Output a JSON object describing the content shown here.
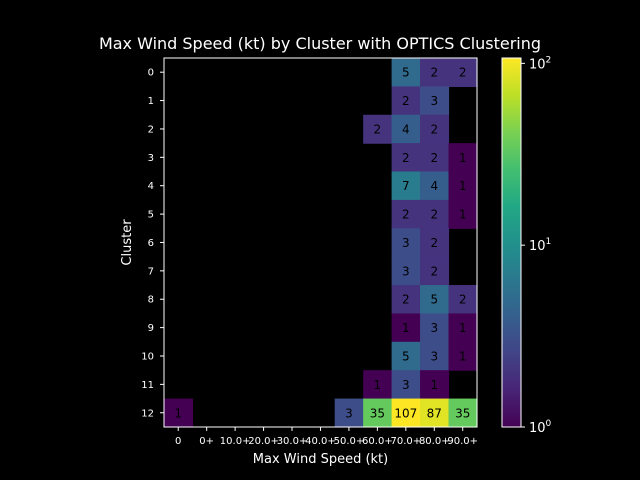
{
  "chart_data": {
    "type": "heatmap",
    "title": "Max Wind Speed (kt) by Cluster with OPTICS Clustering",
    "xlabel": "Max Wind Speed (kt)",
    "ylabel": "Cluster",
    "x_categories": [
      "0",
      "0+",
      "10.0+",
      "20.0+",
      "30.0+",
      "40.0+",
      "50.0+",
      "60.0+",
      "70.0+",
      "80.0+",
      "90.0+"
    ],
    "y_categories": [
      "0",
      "1",
      "2",
      "3",
      "4",
      "5",
      "6",
      "7",
      "8",
      "9",
      "10",
      "11",
      "12"
    ],
    "values": [
      [
        null,
        null,
        null,
        null,
        null,
        null,
        null,
        null,
        5,
        2,
        2
      ],
      [
        null,
        null,
        null,
        null,
        null,
        null,
        null,
        null,
        2,
        3,
        null
      ],
      [
        null,
        null,
        null,
        null,
        null,
        null,
        null,
        2,
        4,
        2,
        null
      ],
      [
        null,
        null,
        null,
        null,
        null,
        null,
        null,
        null,
        2,
        2,
        1
      ],
      [
        null,
        null,
        null,
        null,
        null,
        null,
        null,
        null,
        7,
        4,
        1
      ],
      [
        null,
        null,
        null,
        null,
        null,
        null,
        null,
        null,
        2,
        2,
        1
      ],
      [
        null,
        null,
        null,
        null,
        null,
        null,
        null,
        null,
        3,
        2,
        null
      ],
      [
        null,
        null,
        null,
        null,
        null,
        null,
        null,
        null,
        3,
        2,
        null
      ],
      [
        null,
        null,
        null,
        null,
        null,
        null,
        null,
        null,
        2,
        5,
        2
      ],
      [
        null,
        null,
        null,
        null,
        null,
        null,
        null,
        null,
        1,
        3,
        1
      ],
      [
        null,
        null,
        null,
        null,
        null,
        null,
        null,
        null,
        5,
        3,
        1
      ],
      [
        null,
        null,
        null,
        null,
        null,
        null,
        null,
        1,
        3,
        1,
        null
      ],
      [
        1,
        null,
        null,
        null,
        null,
        null,
        3,
        35,
        107,
        87,
        35
      ]
    ],
    "colorbar": {
      "scale": "log",
      "colormap": "viridis",
      "range": [
        1,
        107
      ],
      "ticks": [
        {
          "value": 1,
          "base": "10",
          "exp": "0"
        },
        {
          "value": 10,
          "base": "10",
          "exp": "1"
        },
        {
          "value": 100,
          "base": "10",
          "exp": "2"
        }
      ]
    },
    "grid": false,
    "empty_color": "#000000"
  }
}
